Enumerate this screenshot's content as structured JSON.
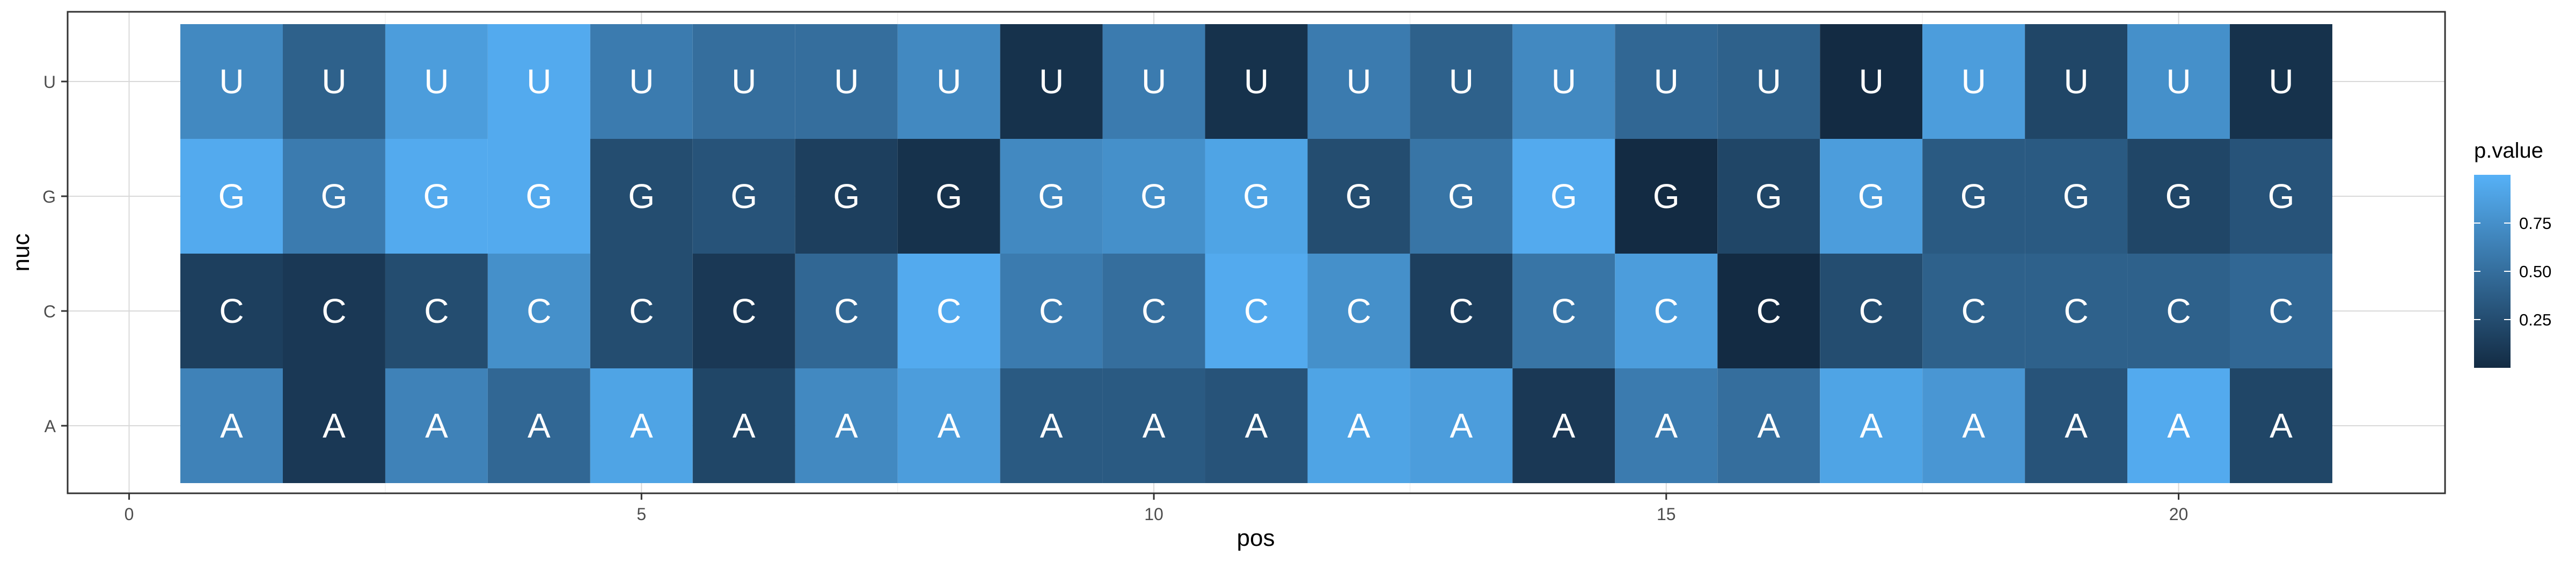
{
  "chart_data": {
    "type": "heatmap",
    "xlabel": "pos",
    "ylabel": "nuc",
    "x_ticks": [
      0,
      5,
      10,
      15,
      20
    ],
    "x_tick_labels": [
      "0",
      "5",
      "10",
      "15",
      "20"
    ],
    "xlim": [
      -0.6,
      22.6
    ],
    "positions": [
      1,
      2,
      3,
      4,
      5,
      6,
      7,
      8,
      9,
      10,
      11,
      12,
      13,
      14,
      15,
      16,
      17,
      18,
      19,
      20,
      21
    ],
    "nucleotides": [
      "U",
      "G",
      "C",
      "A"
    ],
    "grid": true,
    "legend": {
      "title": "p.value",
      "position": "right",
      "range": [
        0,
        1
      ],
      "breaks": [
        0.25,
        0.5,
        0.75
      ],
      "break_labels": [
        "0.25",
        "0.50",
        "0.75"
      ],
      "low_color": "#132B43",
      "high_color": "#56B1F7"
    },
    "values": {
      "U": [
        0.7,
        0.4,
        0.85,
        0.95,
        0.6,
        0.5,
        0.5,
        0.7,
        0.05,
        0.6,
        0.05,
        0.6,
        0.4,
        0.7,
        0.45,
        0.4,
        0.0,
        0.85,
        0.2,
        0.75,
        0.05
      ],
      "G": [
        0.95,
        0.6,
        0.95,
        0.95,
        0.25,
        0.3,
        0.15,
        0.05,
        0.7,
        0.75,
        0.9,
        0.25,
        0.55,
        0.95,
        0.0,
        0.2,
        0.85,
        0.35,
        0.35,
        0.2,
        0.3
      ],
      "C": [
        0.15,
        0.1,
        0.25,
        0.75,
        0.25,
        0.1,
        0.45,
        0.95,
        0.6,
        0.5,
        0.95,
        0.75,
        0.15,
        0.55,
        0.85,
        0.0,
        0.25,
        0.4,
        0.4,
        0.4,
        0.45
      ],
      "A": [
        0.65,
        0.1,
        0.65,
        0.45,
        0.9,
        0.2,
        0.7,
        0.85,
        0.35,
        0.35,
        0.3,
        0.9,
        0.85,
        0.1,
        0.6,
        0.5,
        0.9,
        0.8,
        0.3,
        0.95,
        0.2
      ]
    }
  }
}
